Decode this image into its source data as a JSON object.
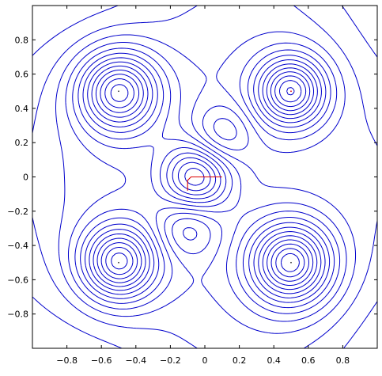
{
  "chart_data": {
    "type": "contour",
    "title": "",
    "xlabel": "",
    "ylabel": "",
    "xlim": [
      -1,
      1
    ],
    "ylim": [
      -1,
      1
    ],
    "x_ticks": [
      -0.8,
      -0.6,
      -0.4,
      -0.2,
      0,
      0.2,
      0.4,
      0.6,
      0.8
    ],
    "x_tick_labels": [
      "−0.8",
      "−0.6",
      "−0.4",
      "−0.2",
      "0",
      "0.2",
      "0.4",
      "0.6",
      "0.8"
    ],
    "y_ticks": [
      0.8,
      0.6,
      0.4,
      0.2,
      0,
      -0.2,
      -0.4,
      -0.6,
      -0.8
    ],
    "y_tick_labels": [
      "0.8",
      "0.6",
      "0.4",
      "0.2",
      "0",
      "−0.2",
      "−0.4",
      "−0.6",
      "−0.8"
    ],
    "grid": false,
    "contour_color": "#0000cc",
    "minima": [
      {
        "x": -0.5,
        "y": 0.5
      },
      {
        "x": 0.5,
        "y": 0.5
      },
      {
        "x": -0.5,
        "y": -0.5
      },
      {
        "x": 0.5,
        "y": -0.5
      }
    ],
    "path_color": "#dd0000",
    "path_points": [
      {
        "x": 0.1,
        "y": 0.0
      },
      {
        "x": -0.08,
        "y": 0.0
      },
      {
        "x": -0.1,
        "y": -0.02
      },
      {
        "x": -0.1,
        "y": -0.08
      }
    ]
  }
}
